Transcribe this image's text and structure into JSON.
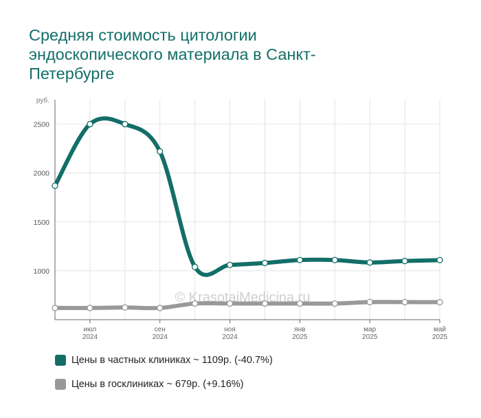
{
  "title": "Средняя стоимость цитологии эндоскопического материала в Санкт-Петербурге",
  "watermark": "© KrasotaiMedicina.ru",
  "chart_data": {
    "type": "line",
    "ylabel": "руб.",
    "ylim": [
      500,
      2750
    ],
    "yticks": [
      1000,
      1500,
      2000,
      2500
    ],
    "x": [
      "2024-06",
      "2024-07",
      "2024-08",
      "2024-09",
      "2024-10",
      "2024-11",
      "2024-12",
      "2025-01",
      "2025-02",
      "2025-03",
      "2025-04",
      "2025-05"
    ],
    "xtick_labels": [
      {
        "index": 1,
        "month": "июл",
        "year": "2024"
      },
      {
        "index": 3,
        "month": "сен",
        "year": "2024"
      },
      {
        "index": 5,
        "month": "ноя",
        "year": "2024"
      },
      {
        "index": 7,
        "month": "янв",
        "year": "2025"
      },
      {
        "index": 9,
        "month": "мар",
        "year": "2025"
      },
      {
        "index": 11,
        "month": "май",
        "year": "2025"
      }
    ],
    "series": [
      {
        "name": "Цены в частных клиниках ~ 1109р. (-40.7%)",
        "color": "#136e68",
        "values": [
          1870,
          2500,
          2500,
          2220,
          1040,
          1060,
          1080,
          1110,
          1110,
          1085,
          1100,
          1109
        ]
      },
      {
        "name": "Цены в госклиниках ~ 679р. (+9.16%)",
        "color": "#999999",
        "values": [
          620,
          620,
          625,
          620,
          665,
          665,
          665,
          665,
          665,
          680,
          680,
          679
        ]
      }
    ],
    "grid": true
  }
}
